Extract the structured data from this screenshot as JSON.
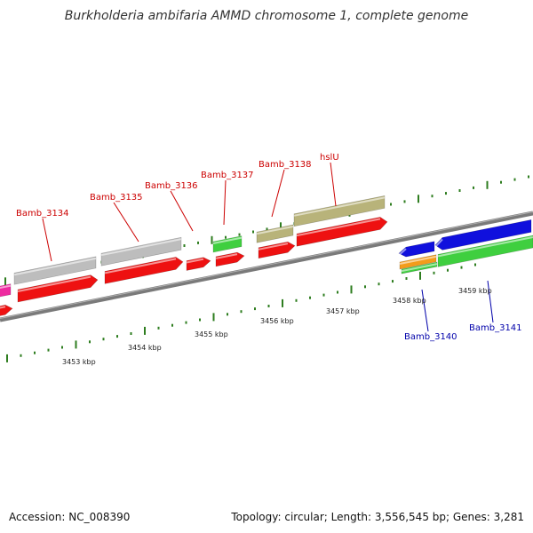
{
  "title": "Burkholderia ambifaria AMMD chromosome 1, complete genome",
  "footer": {
    "accession": "Accession: NC_008390",
    "summary": "Topology: circular; Length: 3,556,545 bp; Genes: 3,281"
  },
  "colors": {
    "backbone": "#7a7a7a",
    "tick": "#2e7d1f",
    "forward_label": "#cc0000",
    "reverse_label": "#0000aa",
    "red_feature": "#ee1111",
    "grey_feature": "#bdbdbd",
    "olive_feature": "#b8b37a",
    "green_feature": "#3fcf3f",
    "blue_feature": "#1010dd",
    "orange_feature": "#f39c1a",
    "magenta_feature": "#ee2aa0"
  },
  "scale_labels": [
    "3453 kbp",
    "3454 kbp",
    "3455 kbp",
    "3456 kbp",
    "3457 kbp",
    "3458 kbp",
    "3459 kbp"
  ],
  "forward_genes": [
    "Bamb_3134",
    "Bamb_3135",
    "Bamb_3136",
    "Bamb_3137",
    "Bamb_3138",
    "hslU"
  ],
  "reverse_genes": [
    "Bamb_3140",
    "Bamb_3141"
  ]
}
